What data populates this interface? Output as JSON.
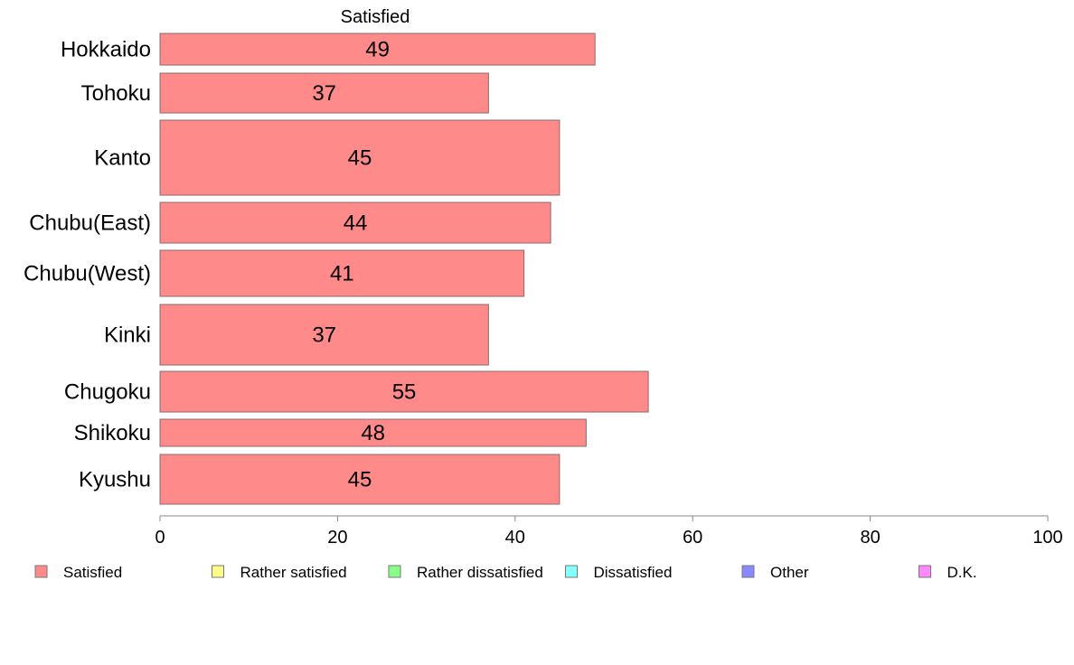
{
  "chart_data": {
    "type": "bar",
    "orientation": "horizontal",
    "stacked": true,
    "panel_title": "Satisfied",
    "categories": [
      "Hokkaido",
      "Tohoku",
      "Kanto",
      "Chubu(East)",
      "Chubu(West)",
      "Kinki",
      "Chugoku",
      "Shikoku",
      "Kyushu"
    ],
    "series": [
      {
        "name": "Satisfied",
        "values": [
          49,
          37,
          45,
          44,
          41,
          37,
          55,
          48,
          45
        ],
        "color": "#ff8a8a"
      }
    ],
    "data_labels": [
      "49",
      "37",
      "45",
      "44",
      "41",
      "37",
      "55",
      "48",
      "45"
    ],
    "xlim": [
      0,
      100
    ],
    "xticks": [
      0,
      20,
      40,
      60,
      80,
      100
    ],
    "xtick_labels": [
      "0",
      "20",
      "40",
      "60",
      "80",
      "100"
    ],
    "grid": false,
    "legend": {
      "placement": "bottom",
      "entries": [
        {
          "label": "Satisfied",
          "color": "#ff8a8a"
        },
        {
          "label": "Rather satisfied",
          "color": "#ffff88"
        },
        {
          "label": "Rather dissatisfied",
          "color": "#88ff88"
        },
        {
          "label": "Dissatisfied",
          "color": "#88ffff"
        },
        {
          "label": "Other",
          "color": "#8888ff"
        },
        {
          "label": "D.K.",
          "color": "#ff88ff"
        }
      ]
    }
  }
}
